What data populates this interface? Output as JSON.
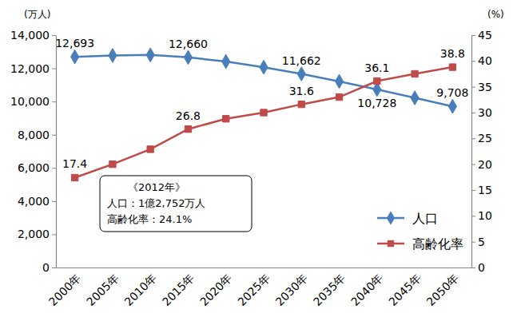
{
  "chart_data": {
    "type": "line",
    "ylabel": "(万人)",
    "y2label": "(%)",
    "categories": [
      "2000年",
      "2005年",
      "2010年",
      "2015年",
      "2020年",
      "2025年",
      "2030年",
      "2035年",
      "2040年",
      "2045年",
      "2050年"
    ],
    "series": [
      {
        "name": "人口",
        "color": "#4a7ebb",
        "marker": "diamond",
        "line_style": "solid",
        "axis": "y",
        "values": [
          12693,
          12777,
          12806,
          12660,
          12410,
          12066,
          11662,
          11212,
          10728,
          10221,
          9708
        ],
        "value_labels": [
          "12,693",
          null,
          null,
          "12,660",
          null,
          null,
          "11,662",
          null,
          "10,728",
          null,
          "9,708"
        ]
      },
      {
        "name": "高齢化率",
        "color": "#be4b48",
        "marker": "square",
        "line_style": "solid",
        "axis": "y2",
        "values": [
          17.4,
          20.0,
          22.9,
          26.8,
          28.8,
          30.0,
          31.6,
          33.0,
          36.1,
          37.5,
          38.8
        ],
        "value_labels": [
          "17.4",
          null,
          null,
          "26.8",
          null,
          null,
          "31.6",
          null,
          "36.1",
          null,
          "38.8"
        ]
      }
    ],
    "ylim": [
      0,
      14000
    ],
    "yticks": [
      0,
      {
        "value": 2000,
        "label": "2,000"
      },
      {
        "value": 4000,
        "label": "4,000"
      },
      {
        "value": 6000,
        "label": "6,000"
      },
      {
        "value": 8000,
        "label": "8,000"
      },
      {
        "value": 10000,
        "label": "10,000"
      },
      {
        "value": 12000,
        "label": "12,000"
      },
      {
        "value": 14000,
        "label": "14,000"
      }
    ],
    "y2lim": [
      0,
      45
    ],
    "y2ticks": [
      0,
      5,
      10,
      15,
      20,
      25,
      30,
      35,
      40,
      45
    ],
    "annotations": [
      "《2012年》",
      "人口：1億2,752万人",
      "高齢化率：24.1%"
    ],
    "grid": false,
    "legend": "lower right",
    "data_labels": true
  }
}
